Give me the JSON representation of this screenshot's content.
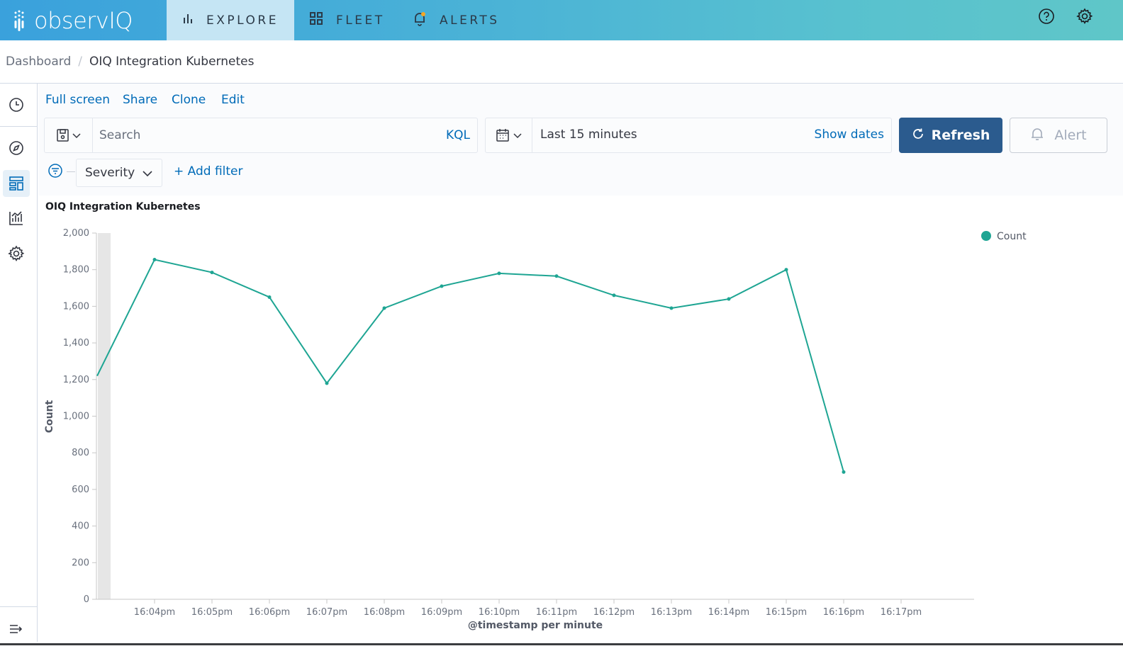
{
  "nav": {
    "logo_text": "observIQ",
    "tabs": [
      {
        "label": "EXPLORE",
        "icon": "bar-chart-icon",
        "active": true
      },
      {
        "label": "FLEET",
        "icon": "grid-icon",
        "active": false
      },
      {
        "label": "ALERTS",
        "icon": "bell-icon",
        "active": false
      }
    ],
    "right_icons": [
      "help-icon",
      "gear-icon"
    ]
  },
  "breadcrumb": {
    "items": [
      "Dashboard",
      "OIQ Integration Kubernetes"
    ]
  },
  "rail": {
    "icons": [
      "clock-icon",
      "compass-icon",
      "dashboard-icon",
      "visualize-icon",
      "settings-icon",
      "collapse-icon"
    ]
  },
  "toolbar": {
    "links": [
      "Full screen",
      "Share",
      "Clone",
      "Edit"
    ],
    "search_placeholder": "Search",
    "query_language": "KQL",
    "time_range": "Last 15 minutes",
    "show_dates": "Show dates",
    "refresh_label": "Refresh",
    "alert_label": "Alert",
    "filter_label": "Severity",
    "add_filter": "+ Add filter"
  },
  "panel": {
    "title": "OIQ Integration Kubernetes"
  },
  "colors": {
    "series": "#1ea593",
    "accent": "#006bb8",
    "primary_button": "#2b5b8e"
  },
  "chart_data": {
    "type": "line",
    "title": "OIQ Integration Kubernetes",
    "xlabel": "@timestamp per minute",
    "ylabel": "Count",
    "ylim": [
      0,
      2000
    ],
    "yticks": [
      0,
      200,
      400,
      600,
      800,
      1000,
      1200,
      1400,
      1600,
      1800,
      2000
    ],
    "categories": [
      "16:04pm",
      "16:05pm",
      "16:06pm",
      "16:07pm",
      "16:08pm",
      "16:09pm",
      "16:10pm",
      "16:11pm",
      "16:12pm",
      "16:13pm",
      "16:14pm",
      "16:15pm",
      "16:16pm",
      "16:17pm"
    ],
    "start_value": 1220,
    "series": [
      {
        "name": "Count",
        "values": [
          1855,
          1785,
          1650,
          1180,
          1590,
          1710,
          1780,
          1765,
          1660,
          1590,
          1640,
          1800,
          695,
          null
        ]
      }
    ],
    "legend": "top-right",
    "grid": false
  }
}
